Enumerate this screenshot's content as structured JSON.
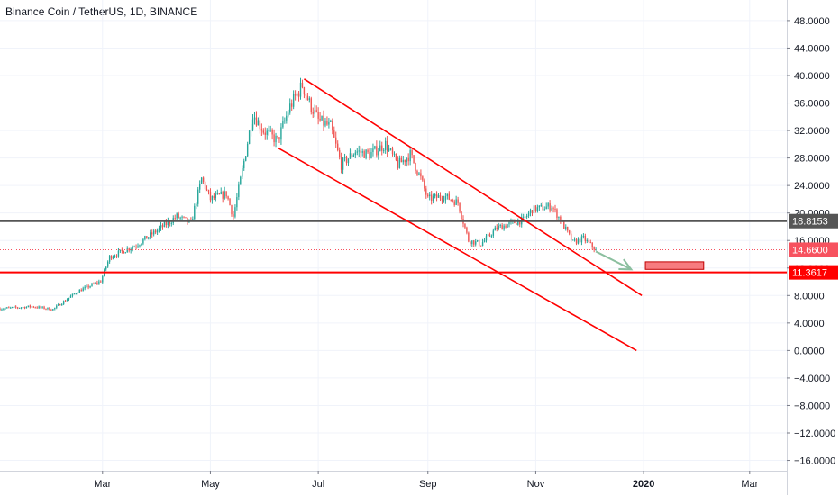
{
  "header": {
    "title": "Binance Coin / TetherUS, 1D, BINANCE"
  },
  "chart_data": {
    "type": "candlestick",
    "symbol": "Binance Coin / TetherUS",
    "interval": "1D",
    "exchange": "BINANCE",
    "ylim": [
      -17.5,
      51
    ],
    "grid": true,
    "y_ticks": [
      "48.0000",
      "44.0000",
      "40.0000",
      "36.0000",
      "32.0000",
      "28.0000",
      "24.0000",
      "20.0000",
      "16.0000",
      "12.0000",
      "8.0000",
      "4.0000",
      "0.0000",
      "−4.0000",
      "−8.0000",
      "−12.0000",
      "−16.0000"
    ],
    "y_tick_values": [
      48,
      44,
      40,
      36,
      32,
      28,
      24,
      20,
      16,
      12,
      8,
      4,
      0,
      -4,
      -8,
      -12,
      -16
    ],
    "x_ticks": [
      {
        "label": "Mar",
        "date": "2019-03-01"
      },
      {
        "label": "May",
        "date": "2019-05-01"
      },
      {
        "label": "Jul",
        "date": "2019-07-01"
      },
      {
        "label": "Sep",
        "date": "2019-09-01"
      },
      {
        "label": "Nov",
        "date": "2019-11-01"
      },
      {
        "label": "2020",
        "date": "2020-01-01",
        "bold": true
      },
      {
        "label": "Mar",
        "date": "2020-03-01"
      }
    ],
    "x_range": [
      "2019-01-02",
      "2020-03-22"
    ],
    "price_path": [
      [
        "2019-01-02",
        6.1
      ],
      [
        "2019-01-20",
        6.4
      ],
      [
        "2019-02-01",
        6.0
      ],
      [
        "2019-02-15",
        8.6
      ],
      [
        "2019-02-28",
        10.1
      ],
      [
        "2019-03-05",
        13.6
      ],
      [
        "2019-03-20",
        15.3
      ],
      [
        "2019-04-01",
        17.5
      ],
      [
        "2019-04-12",
        19.5
      ],
      [
        "2019-04-20",
        18.5
      ],
      [
        "2019-04-26",
        25.0
      ],
      [
        "2019-05-01",
        22.0
      ],
      [
        "2019-05-10",
        22.8
      ],
      [
        "2019-05-14",
        19.5
      ],
      [
        "2019-05-20",
        27.5
      ],
      [
        "2019-05-25",
        34.5
      ],
      [
        "2019-05-31",
        32.0
      ],
      [
        "2019-06-08",
        30.5
      ],
      [
        "2019-06-15",
        35.5
      ],
      [
        "2019-06-22",
        38.6
      ],
      [
        "2019-06-26",
        36.0
      ],
      [
        "2019-07-01",
        33.5
      ],
      [
        "2019-07-08",
        32.5
      ],
      [
        "2019-07-14",
        27.0
      ],
      [
        "2019-07-22",
        29.0
      ],
      [
        "2019-07-30",
        28.5
      ],
      [
        "2019-08-08",
        30.0
      ],
      [
        "2019-08-15",
        27.0
      ],
      [
        "2019-08-22",
        28.5
      ],
      [
        "2019-08-28",
        25.0
      ],
      [
        "2019-09-01",
        22.0
      ],
      [
        "2019-09-10",
        22.5
      ],
      [
        "2019-09-18",
        21.5
      ],
      [
        "2019-09-24",
        16.0
      ],
      [
        "2019-10-01",
        15.5
      ],
      [
        "2019-10-10",
        17.8
      ],
      [
        "2019-10-18",
        18.5
      ],
      [
        "2019-10-25",
        19.0
      ],
      [
        "2019-10-30",
        20.5
      ],
      [
        "2019-11-10",
        21.0
      ],
      [
        "2019-11-15",
        19.0
      ],
      [
        "2019-11-22",
        15.7
      ],
      [
        "2019-11-28",
        16.3
      ],
      [
        "2019-12-05",
        14.66
      ]
    ],
    "horizontal_levels": [
      {
        "name": "resistance",
        "value": 18.8153,
        "label": "18.8153",
        "color": "#555555",
        "badge_color": "#555555"
      },
      {
        "name": "last-price",
        "value": 14.66,
        "label": "14.6600",
        "color": "#f7525f",
        "badge_color": "#f7525f",
        "dotted": true
      },
      {
        "name": "support",
        "value": 11.3617,
        "label": "11.3617",
        "color": "#ff0000",
        "badge_color": "#ff0000"
      }
    ],
    "channel": {
      "upper": [
        [
          "2019-06-23",
          39.5
        ],
        [
          "2019-12-31",
          8.0
        ]
      ],
      "lower": [
        [
          "2019-06-08",
          29.5
        ],
        [
          "2019-12-28",
          0.0
        ]
      ],
      "color": "#ff0000"
    },
    "projection_arrow": {
      "from": [
        "2019-12-05",
        14.4
      ],
      "to": [
        "2019-12-25",
        11.8
      ],
      "color": "#8bbf9f"
    },
    "target_box": {
      "from_date": "2020-01-02",
      "to_date": "2020-02-04",
      "low": 11.8,
      "high": 12.9,
      "color": "#f77c80",
      "border": "#c00000"
    },
    "colors": {
      "up": "#26a69a",
      "down": "#ef5350",
      "grid": "#f0f3fa",
      "axis_text": "#131722"
    }
  }
}
